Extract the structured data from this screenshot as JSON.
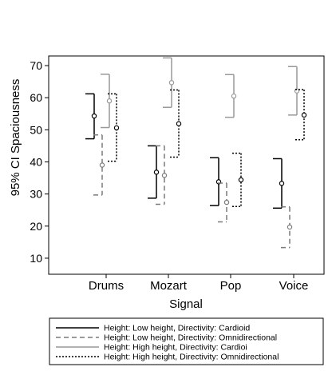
{
  "chart_data": {
    "type": "errorbar",
    "xlabel": "Signal",
    "ylabel": "95% CI Spaciousness",
    "ylim": [
      5,
      73
    ],
    "yticks": [
      10,
      20,
      30,
      40,
      50,
      60,
      70
    ],
    "categories": [
      "Drums",
      "Mozart",
      "Pop",
      "Voice"
    ],
    "grid": false,
    "legend_position": "bottom",
    "series": [
      {
        "name": "Height: Low height, Directivity: Cardioid",
        "color": "#000000",
        "dash": "solid",
        "values": [
          {
            "category": "Drums",
            "mean": 54.3,
            "lower": 47.2,
            "upper": 61.2
          },
          {
            "category": "Mozart",
            "mean": 36.8,
            "lower": 28.7,
            "upper": 45.0
          },
          {
            "category": "Pop",
            "mean": 33.8,
            "lower": 26.4,
            "upper": 41.3
          },
          {
            "category": "Voice",
            "mean": 33.3,
            "lower": 25.6,
            "upper": 41.0
          }
        ]
      },
      {
        "name": "Height: Low height, Directivity: Omnidirectional",
        "color": "#7a7a7a",
        "dash": "dashed",
        "values": [
          {
            "category": "Drums",
            "mean": 39.0,
            "lower": 29.7,
            "upper": 48.4
          },
          {
            "category": "Mozart",
            "mean": 35.8,
            "lower": 26.8,
            "upper": 45.0
          },
          {
            "category": "Pop",
            "mean": 27.4,
            "lower": 21.3,
            "upper": 33.4
          },
          {
            "category": "Voice",
            "mean": 19.7,
            "lower": 13.3,
            "upper": 26.0
          }
        ]
      },
      {
        "name": "Height: High height, Directivity: Cardioi",
        "color": "#999999",
        "dash": "solid",
        "values": [
          {
            "category": "Drums",
            "mean": 59.0,
            "lower": 50.7,
            "upper": 67.3
          },
          {
            "category": "Mozart",
            "mean": 64.7,
            "lower": 57.0,
            "upper": 72.4
          },
          {
            "category": "Pop",
            "mean": 60.5,
            "lower": 53.9,
            "upper": 67.2
          },
          {
            "category": "Voice",
            "mean": 62.1,
            "lower": 54.6,
            "upper": 69.7
          }
        ]
      },
      {
        "name": "Height: High height, Directivity: Omnidirectional",
        "color": "#000000",
        "dash": "dotted",
        "values": [
          {
            "category": "Drums",
            "mean": 50.6,
            "lower": 40.2,
            "upper": 61.2
          },
          {
            "category": "Mozart",
            "mean": 51.9,
            "lower": 41.5,
            "upper": 62.4
          },
          {
            "category": "Pop",
            "mean": 34.4,
            "lower": 26.1,
            "upper": 42.7
          },
          {
            "category": "Voice",
            "mean": 54.6,
            "lower": 46.9,
            "upper": 62.5
          }
        ]
      }
    ]
  }
}
